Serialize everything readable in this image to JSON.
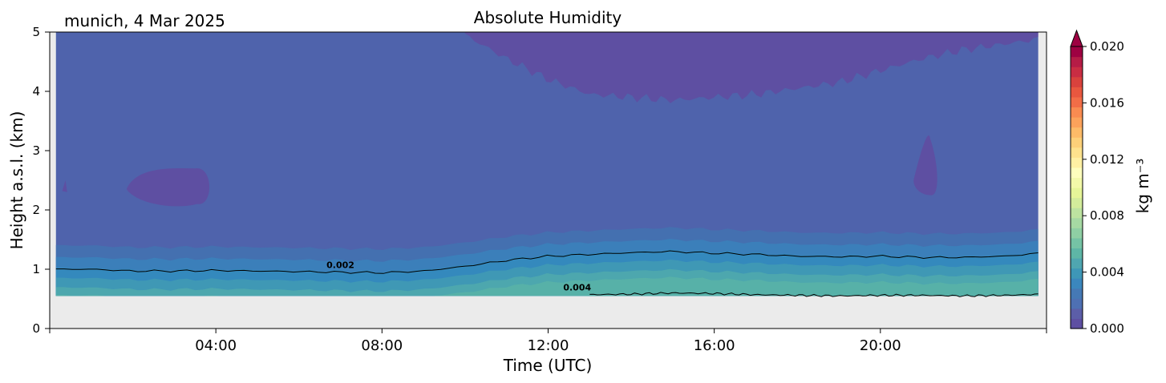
{
  "chart_data": {
    "type": "heatmap",
    "title": "Absolute Humidity",
    "location_label": "munich, 4 Mar 2025",
    "xlabel": "Time (UTC)",
    "ylabel": "Height a.s.l. (km)",
    "x_unit": "hours UTC",
    "xlim": [
      0,
      24
    ],
    "ylim": [
      0,
      5
    ],
    "x_ticks": [
      4,
      8,
      12,
      16,
      20
    ],
    "x_tick_labels": [
      "04:00",
      "08:00",
      "12:00",
      "16:00",
      "20:00"
    ],
    "y_ticks": [
      0,
      1,
      2,
      3,
      4,
      5
    ],
    "y_tick_labels": [
      "0",
      "1",
      "2",
      "3",
      "4",
      "5"
    ],
    "data_bottom_km": 0.55,
    "colorbar": {
      "label": "kg m⁻³",
      "range": [
        0,
        0.02
      ],
      "ticks": [
        0,
        0.004,
        0.008,
        0.012,
        0.016,
        0.02
      ],
      "tick_labels": [
        "0.000",
        "0.004",
        "0.008",
        "0.012",
        "0.016",
        "0.020"
      ],
      "extend": "max",
      "colors": [
        "#5e4fa2",
        "#5c5ea8",
        "#4e70b3",
        "#4579b5",
        "#3b87bd",
        "#3e97b7",
        "#4fa6b0",
        "#5eb6a6",
        "#75c3a5",
        "#8fcfa4",
        "#a6d9a3",
        "#bde3a0",
        "#d3ec9b",
        "#e6f598",
        "#f3f9a9",
        "#fefebd",
        "#fff0a3",
        "#fee28d",
        "#fdd079",
        "#fdbb68",
        "#fca25b",
        "#f98b51",
        "#f26d47",
        "#e8573f",
        "#d9423d",
        "#c92d43",
        "#b51c46",
        "#9e0142"
      ]
    },
    "bands": [
      {
        "level": "0.0005",
        "color": "#5e4fa2"
      },
      {
        "level": "0.0010",
        "color": "#4f63ac"
      },
      {
        "level": "0.0015",
        "color": "#4470b0"
      },
      {
        "level": "0.0020",
        "color": "#3b7fba"
      },
      {
        "level": "0.0025",
        "color": "#3489bd"
      },
      {
        "level": "0.0030",
        "color": "#3f98b5"
      },
      {
        "level": "0.0035",
        "color": "#4da7ae"
      },
      {
        "level": "0.0040",
        "color": "#57b1a8"
      }
    ],
    "contours": [
      {
        "level": 0.002,
        "label": "0.002",
        "label_x_hours": 7.0,
        "label_y_km": 1.02
      },
      {
        "level": 0.004,
        "label": "0.004",
        "label_x_hours": 12.7,
        "label_y_km": 0.64
      }
    ],
    "time_hours": [
      0,
      1,
      2,
      3,
      4,
      5,
      6,
      7,
      8,
      9,
      10,
      11,
      12,
      13,
      14,
      15,
      16,
      17,
      18,
      19,
      20,
      21,
      22,
      23,
      24
    ],
    "dry_layer_bottom_km": [
      5.0,
      5.0,
      5.0,
      5.0,
      5.0,
      5.0,
      5.0,
      5.0,
      5.0,
      5.0,
      4.95,
      4.55,
      4.2,
      3.95,
      3.9,
      3.85,
      3.9,
      3.95,
      4.05,
      4.15,
      4.35,
      4.55,
      4.7,
      4.8,
      4.9
    ],
    "contour_0002_km": [
      1.0,
      1.0,
      0.97,
      0.97,
      0.98,
      0.97,
      0.96,
      0.95,
      0.94,
      0.97,
      1.05,
      1.15,
      1.22,
      1.25,
      1.28,
      1.3,
      1.27,
      1.25,
      1.22,
      1.21,
      1.22,
      1.2,
      1.2,
      1.22,
      1.28
    ],
    "contour_0004_km": [
      null,
      null,
      null,
      null,
      null,
      null,
      null,
      null,
      null,
      null,
      null,
      null,
      null,
      0.57,
      0.58,
      0.6,
      0.59,
      0.57,
      0.56,
      0.55,
      0.56,
      0.56,
      0.55,
      0.56,
      0.58
    ]
  }
}
